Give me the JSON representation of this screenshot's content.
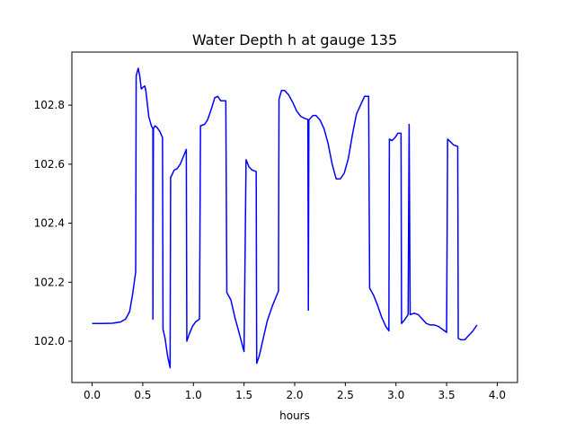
{
  "chart_data": {
    "type": "line",
    "title": "Water Depth h at gauge 135",
    "xlabel": "hours",
    "ylabel": "",
    "xlim": [
      -0.2,
      4.2
    ],
    "ylim": [
      101.86,
      102.98
    ],
    "grid": false,
    "x_ticks": [
      {
        "value": 0.0,
        "label": "0.0"
      },
      {
        "value": 0.5,
        "label": "0.5"
      },
      {
        "value": 1.0,
        "label": "1.0"
      },
      {
        "value": 1.5,
        "label": "1.5"
      },
      {
        "value": 2.0,
        "label": "2.0"
      },
      {
        "value": 2.5,
        "label": "2.5"
      },
      {
        "value": 3.0,
        "label": "3.0"
      },
      {
        "value": 3.5,
        "label": "3.5"
      },
      {
        "value": 4.0,
        "label": "4.0"
      }
    ],
    "y_ticks": [
      {
        "value": 102.0,
        "label": "102.0"
      },
      {
        "value": 102.2,
        "label": "102.2"
      },
      {
        "value": 102.4,
        "label": "102.4"
      },
      {
        "value": 102.6,
        "label": "102.6"
      },
      {
        "value": 102.8,
        "label": "102.8"
      }
    ],
    "series": [
      {
        "color": "#0000ff",
        "points": [
          [
            0.0,
            102.06
          ],
          [
            0.1,
            102.06
          ],
          [
            0.2,
            102.061
          ],
          [
            0.28,
            102.065
          ],
          [
            0.33,
            102.075
          ],
          [
            0.37,
            102.1
          ],
          [
            0.4,
            102.16
          ],
          [
            0.43,
            102.235
          ],
          [
            0.435,
            102.9
          ],
          [
            0.455,
            102.925
          ],
          [
            0.47,
            102.9
          ],
          [
            0.485,
            102.855
          ],
          [
            0.5,
            102.86
          ],
          [
            0.52,
            102.865
          ],
          [
            0.53,
            102.85
          ],
          [
            0.56,
            102.76
          ],
          [
            0.585,
            102.73
          ],
          [
            0.6,
            102.72
          ],
          [
            0.6,
            102.075
          ],
          [
            0.605,
            102.72
          ],
          [
            0.62,
            102.73
          ],
          [
            0.64,
            102.725
          ],
          [
            0.67,
            102.71
          ],
          [
            0.695,
            102.69
          ],
          [
            0.7,
            102.04
          ],
          [
            0.72,
            102.01
          ],
          [
            0.745,
            101.95
          ],
          [
            0.77,
            101.91
          ],
          [
            0.775,
            102.555
          ],
          [
            0.79,
            102.565
          ],
          [
            0.81,
            102.58
          ],
          [
            0.84,
            102.585
          ],
          [
            0.87,
            102.6
          ],
          [
            0.9,
            102.625
          ],
          [
            0.93,
            102.65
          ],
          [
            0.935,
            102.0
          ],
          [
            0.96,
            102.025
          ],
          [
            0.99,
            102.05
          ],
          [
            1.02,
            102.065
          ],
          [
            1.06,
            102.075
          ],
          [
            1.07,
            102.73
          ],
          [
            1.11,
            102.735
          ],
          [
            1.14,
            102.75
          ],
          [
            1.18,
            102.79
          ],
          [
            1.21,
            102.825
          ],
          [
            1.24,
            102.83
          ],
          [
            1.27,
            102.815
          ],
          [
            1.32,
            102.815
          ],
          [
            1.33,
            102.165
          ],
          [
            1.37,
            102.14
          ],
          [
            1.41,
            102.08
          ],
          [
            1.45,
            102.03
          ],
          [
            1.5,
            101.965
          ],
          [
            1.52,
            102.615
          ],
          [
            1.55,
            102.59
          ],
          [
            1.58,
            102.58
          ],
          [
            1.62,
            102.575
          ],
          [
            1.625,
            101.925
          ],
          [
            1.65,
            101.95
          ],
          [
            1.69,
            102.01
          ],
          [
            1.73,
            102.07
          ],
          [
            1.78,
            102.12
          ],
          [
            1.84,
            102.17
          ],
          [
            1.845,
            102.82
          ],
          [
            1.87,
            102.85
          ],
          [
            1.9,
            102.85
          ],
          [
            1.94,
            102.835
          ],
          [
            1.98,
            102.81
          ],
          [
            2.02,
            102.78
          ],
          [
            2.06,
            102.762
          ],
          [
            2.1,
            102.755
          ],
          [
            2.13,
            102.752
          ],
          [
            2.135,
            102.105
          ],
          [
            2.14,
            102.75
          ],
          [
            2.18,
            102.765
          ],
          [
            2.21,
            102.765
          ],
          [
            2.25,
            102.75
          ],
          [
            2.29,
            102.72
          ],
          [
            2.33,
            102.67
          ],
          [
            2.37,
            102.6
          ],
          [
            2.41,
            102.55
          ],
          [
            2.45,
            102.55
          ],
          [
            2.49,
            102.57
          ],
          [
            2.53,
            102.62
          ],
          [
            2.57,
            102.7
          ],
          [
            2.61,
            102.77
          ],
          [
            2.65,
            102.8
          ],
          [
            2.69,
            102.83
          ],
          [
            2.73,
            102.83
          ],
          [
            2.74,
            102.18
          ],
          [
            2.78,
            102.155
          ],
          [
            2.82,
            102.12
          ],
          [
            2.86,
            102.08
          ],
          [
            2.9,
            102.05
          ],
          [
            2.93,
            102.035
          ],
          [
            2.935,
            102.685
          ],
          [
            2.96,
            102.68
          ],
          [
            2.99,
            102.69
          ],
          [
            3.02,
            102.705
          ],
          [
            3.05,
            102.705
          ],
          [
            3.055,
            102.06
          ],
          [
            3.08,
            102.07
          ],
          [
            3.1,
            102.08
          ],
          [
            3.12,
            102.09
          ],
          [
            3.13,
            102.735
          ],
          [
            3.14,
            102.09
          ],
          [
            3.18,
            102.095
          ],
          [
            3.22,
            102.09
          ],
          [
            3.26,
            102.075
          ],
          [
            3.3,
            102.06
          ],
          [
            3.34,
            102.055
          ],
          [
            3.38,
            102.055
          ],
          [
            3.42,
            102.05
          ],
          [
            3.46,
            102.04
          ],
          [
            3.5,
            102.03
          ],
          [
            3.51,
            102.685
          ],
          [
            3.54,
            102.675
          ],
          [
            3.57,
            102.665
          ],
          [
            3.61,
            102.66
          ],
          [
            3.615,
            102.01
          ],
          [
            3.64,
            102.005
          ],
          [
            3.68,
            102.005
          ],
          [
            3.72,
            102.02
          ],
          [
            3.76,
            102.035
          ],
          [
            3.8,
            102.055
          ]
        ]
      }
    ]
  }
}
